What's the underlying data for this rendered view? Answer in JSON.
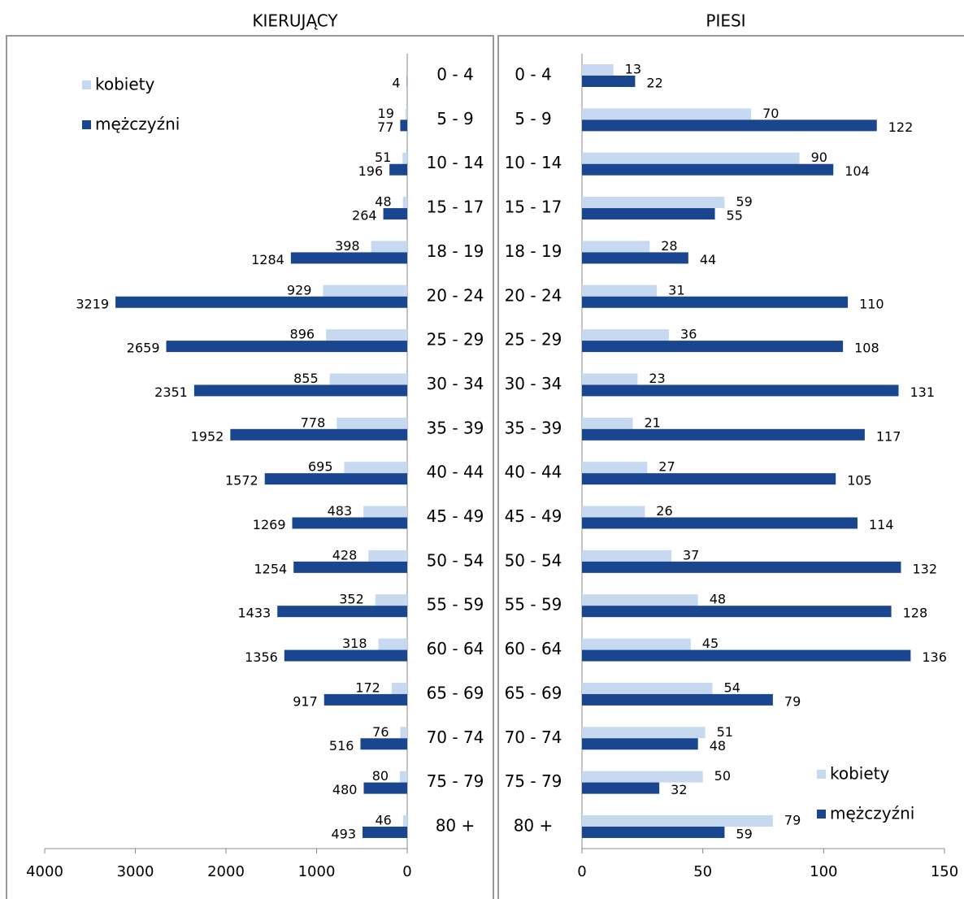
{
  "chart_data": [
    {
      "type": "bar",
      "title": "KIERUJĄCY",
      "categories": [
        "0 - 4",
        "5 - 9",
        "10 - 14",
        "15 - 17",
        "18 - 19",
        "20 - 24",
        "25 - 29",
        "30 - 34",
        "35 - 39",
        "40 - 44",
        "45 - 49",
        "50 - 54",
        "55 - 59",
        "60 - 64",
        "65 - 69",
        "70 - 74",
        "75 - 79",
        "80 +"
      ],
      "series": [
        {
          "name": "kobiety",
          "color": "#c6d9f1",
          "values": [
            null,
            19,
            51,
            48,
            398,
            929,
            896,
            855,
            778,
            695,
            483,
            428,
            352,
            318,
            172,
            76,
            80,
            46
          ]
        },
        {
          "name": "mężczyźni",
          "color": "#1a468f",
          "values": [
            4,
            77,
            196,
            264,
            1284,
            3219,
            2659,
            2351,
            1952,
            1572,
            1269,
            1254,
            1433,
            1356,
            917,
            516,
            480,
            493
          ]
        }
      ],
      "xlim": [
        4000,
        0
      ],
      "xticks": [
        4000,
        3000,
        2000,
        1000,
        0
      ],
      "legend": "top-left"
    },
    {
      "type": "bar",
      "title": "PIESI",
      "categories": [
        "0 - 4",
        "5 - 9",
        "10 - 14",
        "15 - 17",
        "18 - 19",
        "20 - 24",
        "25 - 29",
        "30 - 34",
        "35 - 39",
        "40 - 44",
        "45 - 49",
        "50 - 54",
        "55 - 59",
        "60 - 64",
        "65 - 69",
        "70 - 74",
        "75 - 79",
        "80 +"
      ],
      "series": [
        {
          "name": "kobiety",
          "color": "#c6d9f1",
          "values": [
            13,
            70,
            90,
            59,
            28,
            31,
            36,
            23,
            21,
            27,
            26,
            37,
            48,
            45,
            54,
            51,
            50,
            79
          ]
        },
        {
          "name": "mężczyźni",
          "color": "#1a468f",
          "values": [
            22,
            122,
            104,
            55,
            44,
            110,
            108,
            131,
            117,
            105,
            114,
            132,
            128,
            136,
            79,
            48,
            32,
            59
          ]
        }
      ],
      "xlim": [
        0,
        150
      ],
      "xticks": [
        0,
        50,
        100,
        150
      ],
      "legend": "bottom-right"
    }
  ]
}
